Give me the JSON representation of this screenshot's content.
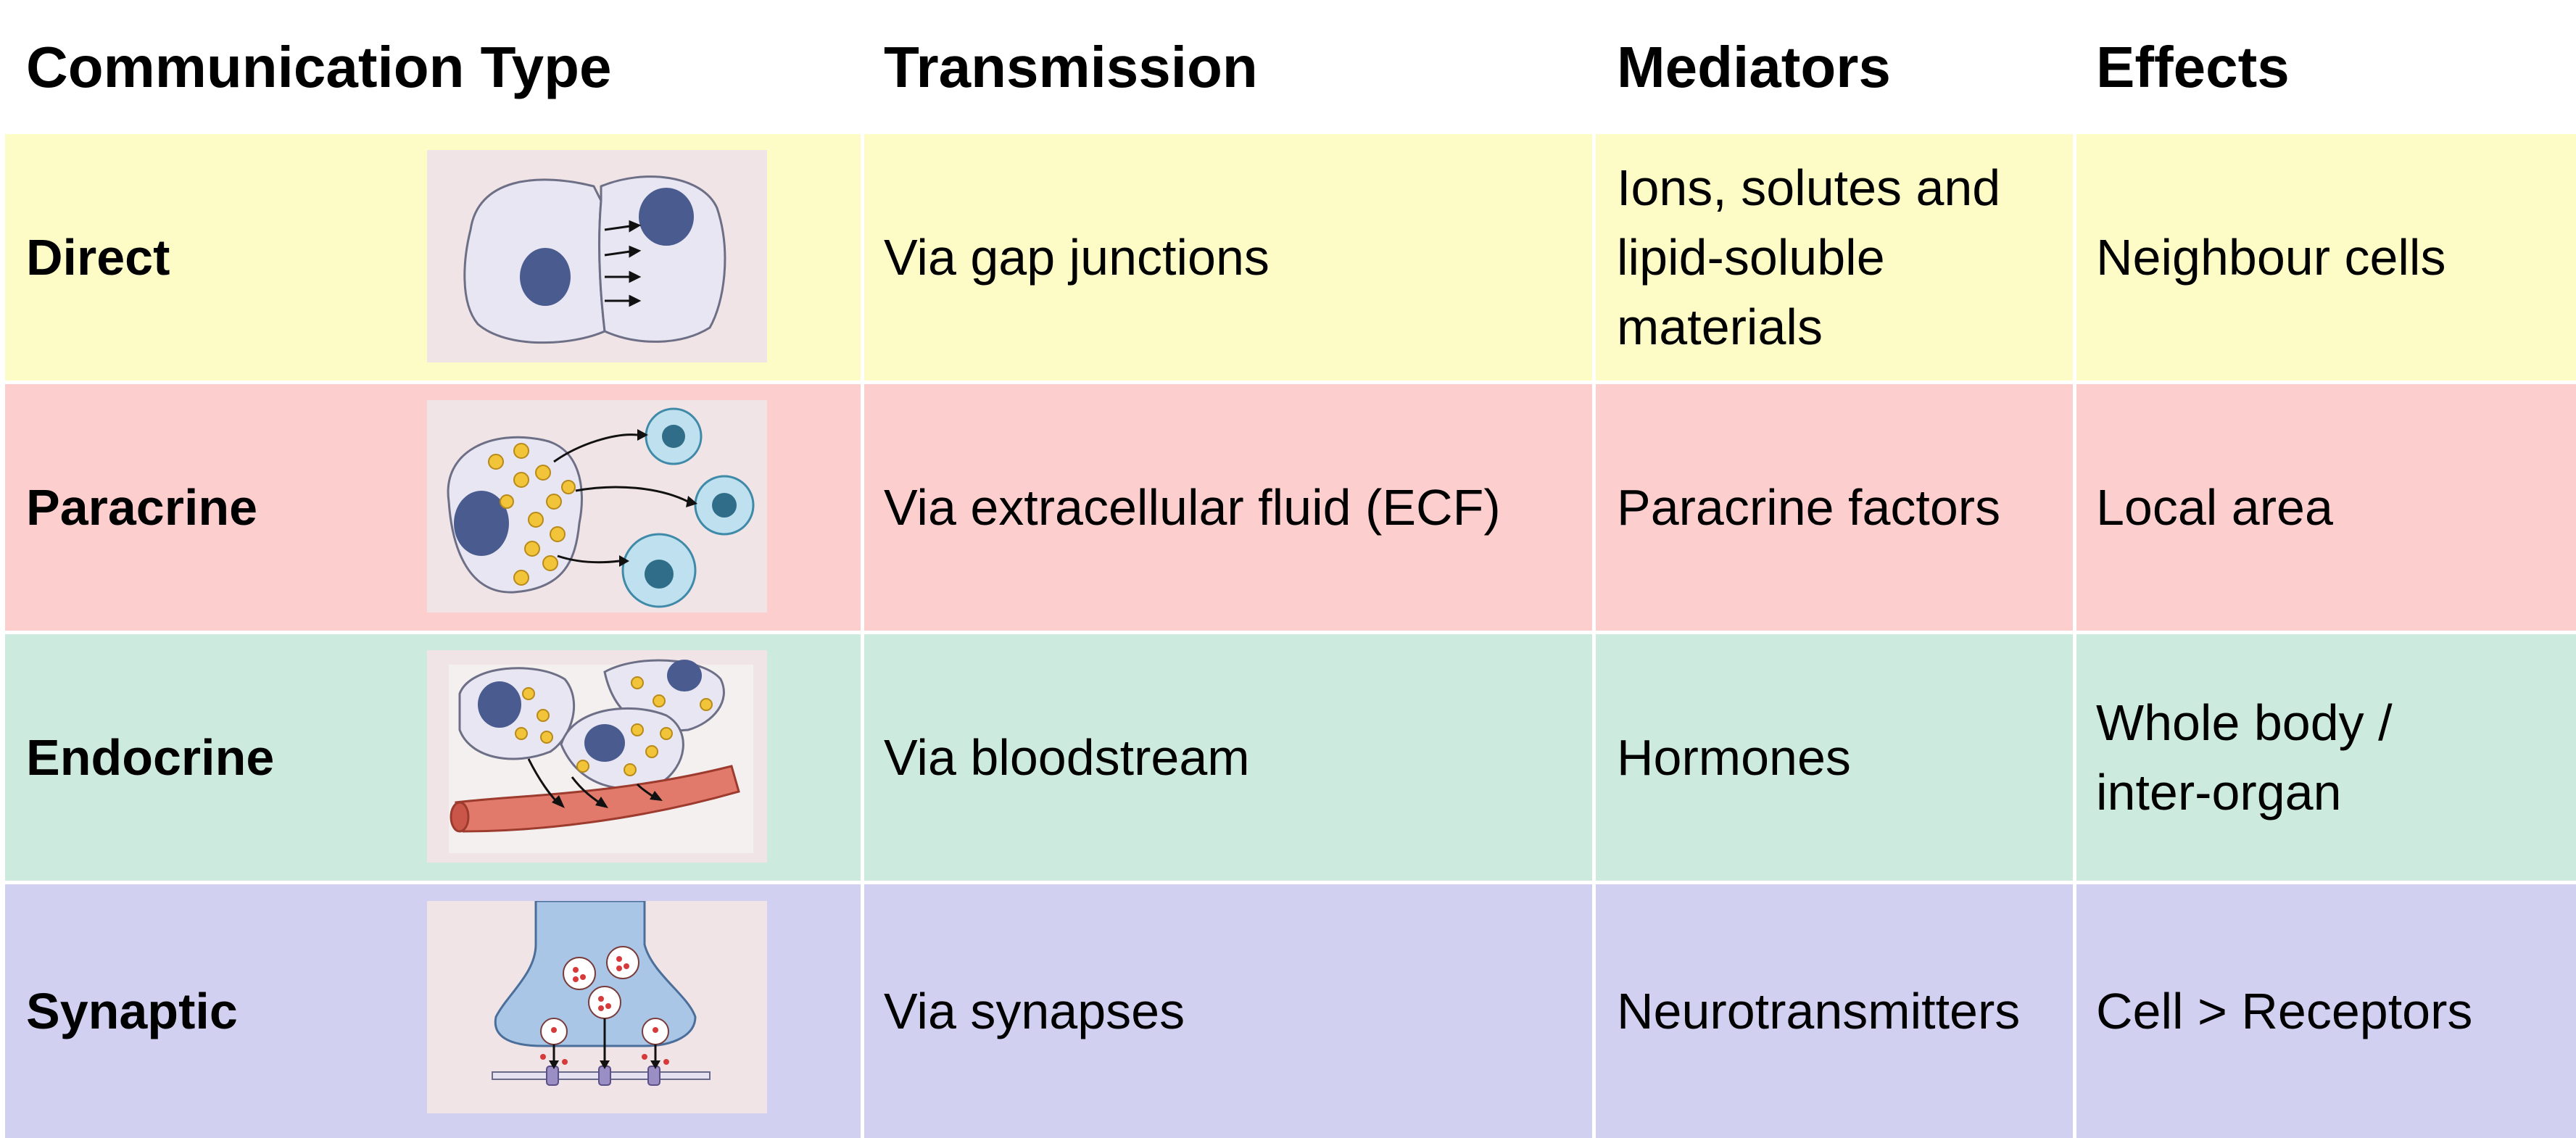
{
  "headers": {
    "type": "Communication Type",
    "transmission": "Transmission",
    "mediators": "Mediators",
    "effects": "Effects"
  },
  "rows": [
    {
      "type": "Direct",
      "transmission": "Via gap junctions",
      "mediators": "Ions, solutes and lipid-soluble materials",
      "effects": "Neighbour cells",
      "color": "#fdfbc6",
      "icon": "gap-junction-cells-icon"
    },
    {
      "type": "Paracrine",
      "transmission": "Via extracellular fluid (ECF)",
      "mediators": "Paracrine factors",
      "effects": "Local area",
      "color": "#fccfce",
      "icon": "paracrine-signaling-icon"
    },
    {
      "type": "Endocrine",
      "transmission": "Via bloodstream",
      "mediators": "Hormones",
      "effects": "Whole body / inter-organ",
      "color": "#cdeadf",
      "icon": "endocrine-signaling-icon"
    },
    {
      "type": "Synaptic",
      "transmission": "Via synapses",
      "mediators": "Neurotransmitters",
      "effects": "Cell > Receptors",
      "color": "#d2d0f1",
      "icon": "synapse-icon"
    }
  ]
}
